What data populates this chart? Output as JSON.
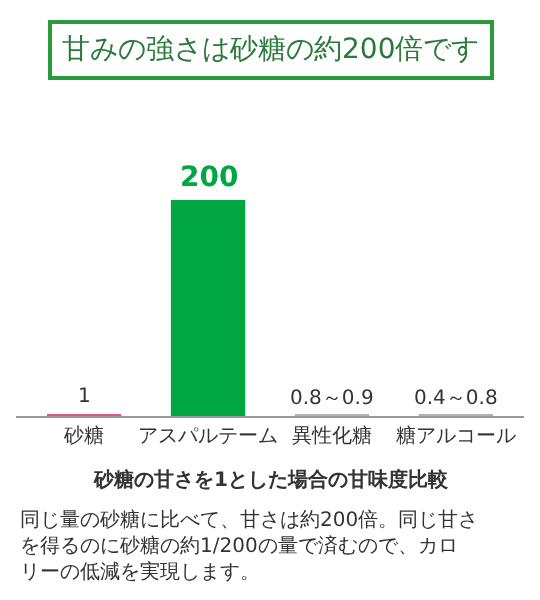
{
  "chart_data": {
    "type": "bar",
    "title": "甘みの強さは砂糖の約200倍です",
    "xlabel": "砂糖の甘さを1とした場合の甘味度比較",
    "categories": [
      "砂糖",
      "アスパルテーム",
      "異性化糖",
      "糖アルコール"
    ],
    "values": [
      1,
      200,
      0.85,
      0.8
    ],
    "value_labels": [
      "1",
      "200",
      "0.8～0.9",
      "0.4～0.8"
    ],
    "colors": [
      "#e8538a",
      "#00a640",
      "#b3b3b3",
      "#b3b3b3"
    ],
    "annotations": [
      "同じ量の砂糖に比べて、甘さは約200倍。同じ甘さを得るのに砂糖の約1/200の量で済むので、カロリーの低減を実現します。"
    ]
  }
}
